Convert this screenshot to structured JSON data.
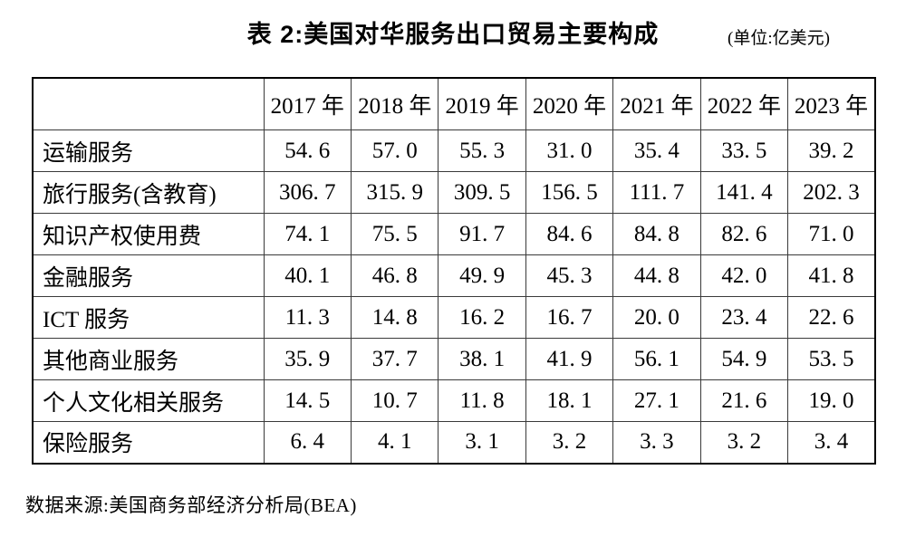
{
  "title": {
    "text": "表 2:美国对华服务出口贸易主要构成",
    "unit": "(单位:亿美元)"
  },
  "table": {
    "columns": [
      "",
      "2017 年",
      "2018 年",
      "2019 年",
      "2020 年",
      "2021 年",
      "2022 年",
      "2023 年"
    ],
    "rows": [
      {
        "label": "运输服务",
        "values": [
          "54. 6",
          "57. 0",
          "55. 3",
          "31. 0",
          "35. 4",
          "33. 5",
          "39. 2"
        ]
      },
      {
        "label": "旅行服务(含教育)",
        "values": [
          "306. 7",
          "315. 9",
          "309. 5",
          "156. 5",
          "111. 7",
          "141. 4",
          "202. 3"
        ]
      },
      {
        "label": "知识产权使用费",
        "values": [
          "74. 1",
          "75. 5",
          "91. 7",
          "84. 6",
          "84. 8",
          "82. 6",
          "71. 0"
        ]
      },
      {
        "label": "金融服务",
        "values": [
          "40. 1",
          "46. 8",
          "49. 9",
          "45. 3",
          "44. 8",
          "42. 0",
          "41. 8"
        ]
      },
      {
        "label": "ICT 服务",
        "values": [
          "11. 3",
          "14. 8",
          "16. 2",
          "16. 7",
          "20. 0",
          "23. 4",
          "22. 6"
        ]
      },
      {
        "label": "其他商业服务",
        "values": [
          "35. 9",
          "37. 7",
          "38. 1",
          "41. 9",
          "56. 1",
          "54. 9",
          "53. 5"
        ]
      },
      {
        "label": "个人文化相关服务",
        "values": [
          "14. 5",
          "10. 7",
          "11. 8",
          "18. 1",
          "27. 1",
          "21. 6",
          "19. 0"
        ]
      },
      {
        "label": "保险服务",
        "values": [
          "6. 4",
          "4. 1",
          "3. 1",
          "3. 2",
          "3. 3",
          "3. 2",
          "3. 4"
        ]
      }
    ]
  },
  "footer": {
    "source": "数据来源:美国商务部经济分析局(BEA)"
  },
  "chart_data": {
    "type": "table",
    "title": "表 2:美国对华服务出口贸易主要构成",
    "unit": "亿美元",
    "columns": [
      "2017",
      "2018",
      "2019",
      "2020",
      "2021",
      "2022",
      "2023"
    ],
    "rows": [
      {
        "label": "运输服务",
        "values": [
          54.6,
          57.0,
          55.3,
          31.0,
          35.4,
          33.5,
          39.2
        ]
      },
      {
        "label": "旅行服务(含教育)",
        "values": [
          306.7,
          315.9,
          309.5,
          156.5,
          111.7,
          141.4,
          202.3
        ]
      },
      {
        "label": "知识产权使用费",
        "values": [
          74.1,
          75.5,
          91.7,
          84.6,
          84.8,
          82.6,
          71.0
        ]
      },
      {
        "label": "金融服务",
        "values": [
          40.1,
          46.8,
          49.9,
          45.3,
          44.8,
          42.0,
          41.8
        ]
      },
      {
        "label": "ICT 服务",
        "values": [
          11.3,
          14.8,
          16.2,
          16.7,
          20.0,
          23.4,
          22.6
        ]
      },
      {
        "label": "其他商业服务",
        "values": [
          35.9,
          37.7,
          38.1,
          41.9,
          56.1,
          54.9,
          53.5
        ]
      },
      {
        "label": "个人文化相关服务",
        "values": [
          14.5,
          10.7,
          11.8,
          18.1,
          27.1,
          21.6,
          19.0
        ]
      },
      {
        "label": "保险服务",
        "values": [
          6.4,
          4.1,
          3.1,
          3.2,
          3.3,
          3.2,
          3.4
        ]
      }
    ],
    "source": "数据来源:美国商务部经济分析局(BEA)"
  }
}
